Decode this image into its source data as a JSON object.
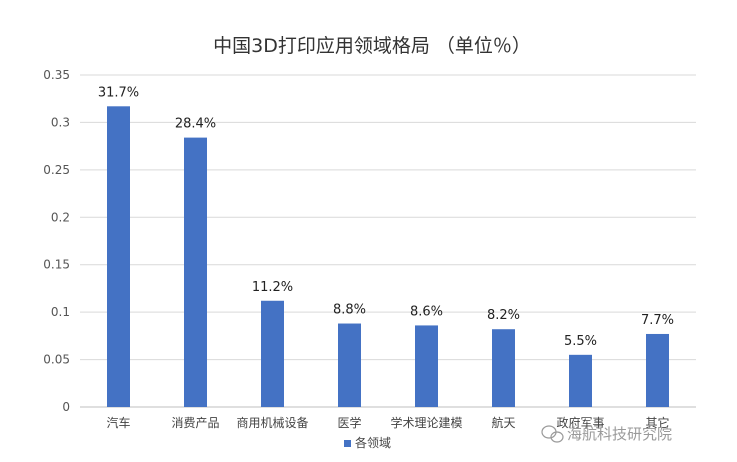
{
  "chart_data": {
    "type": "bar",
    "title": "中国3D打印应用领域格局 （单位％）",
    "categories": [
      "汽车",
      "消费产品",
      "商用机械设备",
      "医学",
      "学术理论建模",
      "航天",
      "政府军事",
      "其它"
    ],
    "series": [
      {
        "name": "各领域",
        "values": [
          0.317,
          0.284,
          0.112,
          0.088,
          0.086,
          0.082,
          0.055,
          0.077
        ],
        "data_labels": [
          "31.7%",
          "28.4%",
          "11.2%",
          "8.8%",
          "8.6%",
          "8.2%",
          "5.5%",
          "7.7%"
        ],
        "color": "#4472C4"
      }
    ],
    "y_ticks": [
      "0",
      "0.05",
      "0.1",
      "0.15",
      "0.2",
      "0.25",
      "0.3",
      "0.35"
    ],
    "ylim": [
      0,
      0.35
    ],
    "grid": true,
    "legend_position": "bottom-center"
  },
  "colors": {
    "grid": "#d9d9d9",
    "bar": "#4472C4"
  },
  "watermark": {
    "text": "海航科技研究院"
  }
}
